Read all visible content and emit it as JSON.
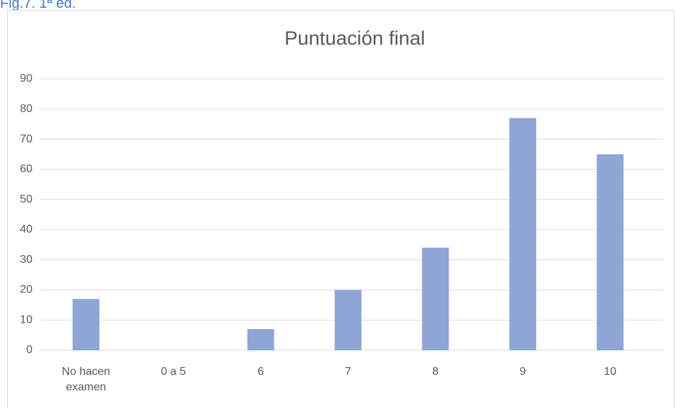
{
  "caption": "Fig.7. 1ª ed.",
  "chart_data": {
    "type": "bar",
    "title": "Puntuación final",
    "categories": [
      "No hacen examen",
      "0 a 5",
      "6",
      "7",
      "8",
      "9",
      "10"
    ],
    "values": [
      17,
      0,
      7,
      20,
      34,
      77,
      65
    ],
    "color": "#8fa5d6",
    "ylim": [
      0,
      90
    ],
    "yticks": [
      0,
      10,
      20,
      30,
      40,
      50,
      60,
      70,
      80,
      90
    ],
    "grid": true
  }
}
